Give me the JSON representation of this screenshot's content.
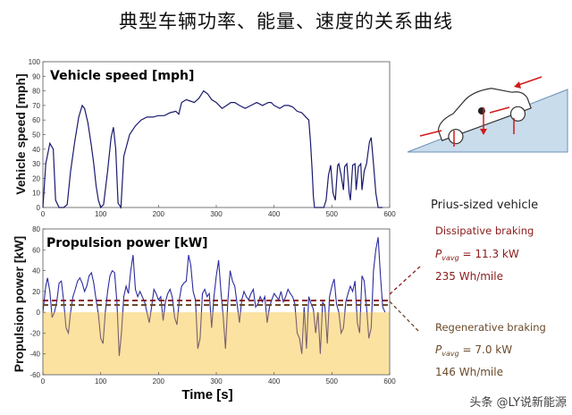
{
  "title": "典型车辆功率、能量、速度的关系曲线",
  "watermark": "头条 @LY说新能源",
  "chart_data": [
    {
      "type": "line",
      "title": "Vehicle speed [mph]",
      "ylabel": "Vehicle speed [mph]",
      "xlabel": "",
      "xlim": [
        0,
        600
      ],
      "ylim": [
        0,
        100
      ],
      "xticks": [
        0,
        100,
        200,
        300,
        400,
        500,
        600
      ],
      "yticks": [
        0,
        10,
        20,
        30,
        40,
        50,
        60,
        70,
        80,
        90,
        100
      ],
      "grid": false,
      "series": [
        {
          "color": "#1a1a6e",
          "x": [
            0,
            5,
            12,
            18,
            22,
            28,
            32,
            36,
            42,
            48,
            55,
            62,
            68,
            72,
            78,
            84,
            88,
            92,
            96,
            100,
            105,
            112,
            118,
            122,
            126,
            130,
            135,
            140,
            150,
            160,
            170,
            180,
            190,
            200,
            210,
            220,
            230,
            235,
            240,
            248,
            255,
            262,
            270,
            278,
            285,
            292,
            300,
            305,
            310,
            318,
            325,
            332,
            340,
            350,
            360,
            370,
            380,
            390,
            395,
            400,
            405,
            410,
            418,
            425,
            432,
            440,
            448,
            455,
            460,
            463,
            466,
            468,
            470,
            472,
            474,
            476,
            478,
            480,
            484,
            486,
            490,
            494,
            498,
            502,
            506,
            510,
            512,
            516,
            520,
            522,
            526,
            530,
            532,
            536,
            540,
            542,
            546,
            550,
            552,
            556,
            560,
            565,
            568,
            572,
            576,
            580,
            584,
            588
          ],
          "y": [
            0,
            30,
            44,
            40,
            5,
            0,
            0,
            0,
            2,
            25,
            45,
            62,
            70,
            68,
            58,
            42,
            30,
            15,
            5,
            0,
            2,
            25,
            48,
            55,
            40,
            3,
            0,
            35,
            50,
            56,
            60,
            62,
            62,
            63,
            63,
            65,
            66,
            64,
            72,
            74,
            73,
            72,
            75,
            80,
            78,
            74,
            72,
            70,
            68,
            70,
            72,
            72,
            70,
            68,
            70,
            72,
            70,
            72,
            72,
            70,
            69,
            68,
            70,
            70,
            69,
            66,
            65,
            62,
            60,
            45,
            25,
            8,
            0,
            0,
            0,
            0,
            0,
            0,
            0,
            0,
            5,
            22,
            29,
            10,
            5,
            29,
            30,
            22,
            12,
            28,
            30,
            10,
            5,
            29,
            30,
            12,
            28,
            30,
            12,
            25,
            30,
            45,
            48,
            30,
            10,
            0,
            0,
            0
          ]
        }
      ]
    },
    {
      "type": "line",
      "title": "Propulsion power [kW]",
      "ylabel": "Propulsion power [kW]",
      "xlabel": "Time [s]",
      "xlim": [
        0,
        600
      ],
      "ylim": [
        -60,
        80
      ],
      "xticks": [
        0,
        100,
        200,
        300,
        400,
        500,
        600
      ],
      "yticks": [
        -60,
        -40,
        -20,
        0,
        20,
        40,
        60,
        80
      ],
      "grid": false,
      "negative_region_color": "#fbe2a0",
      "reference_lines": [
        {
          "label": "Dissipative braking",
          "value": 11.3,
          "color": "#8b1a1a"
        },
        {
          "label": "Regenerative braking",
          "value": 7.0,
          "color": "#6b4a2a"
        }
      ],
      "series": [
        {
          "color": "#2a2aa0",
          "x": [
            0,
            5,
            8,
            12,
            16,
            20,
            24,
            28,
            32,
            36,
            40,
            44,
            48,
            52,
            56,
            60,
            64,
            68,
            72,
            76,
            80,
            84,
            88,
            92,
            96,
            100,
            104,
            108,
            112,
            116,
            120,
            124,
            128,
            132,
            136,
            140,
            144,
            148,
            152,
            156,
            160,
            164,
            168,
            172,
            176,
            180,
            184,
            188,
            192,
            196,
            200,
            204,
            208,
            212,
            216,
            220,
            224,
            228,
            232,
            236,
            240,
            244,
            248,
            252,
            256,
            260,
            264,
            268,
            272,
            276,
            280,
            284,
            288,
            292,
            296,
            300,
            304,
            308,
            312,
            316,
            320,
            324,
            328,
            332,
            336,
            340,
            344,
            348,
            352,
            356,
            360,
            364,
            368,
            372,
            376,
            380,
            384,
            388,
            392,
            396,
            400,
            404,
            408,
            412,
            416,
            420,
            424,
            428,
            432,
            436,
            440,
            444,
            448,
            452,
            456,
            460,
            464,
            468,
            472,
            476,
            480,
            484,
            488,
            492,
            496,
            500,
            504,
            508,
            512,
            516,
            520,
            524,
            528,
            532,
            536,
            540,
            544,
            548,
            552,
            556,
            560,
            564,
            568,
            572,
            576,
            580,
            584,
            588,
            592
          ],
          "y": [
            0,
            25,
            33,
            20,
            -5,
            0,
            10,
            28,
            30,
            10,
            -15,
            -20,
            0,
            15,
            22,
            30,
            33,
            28,
            20,
            25,
            35,
            38,
            28,
            12,
            -2,
            -25,
            -30,
            0,
            20,
            35,
            40,
            38,
            10,
            -42,
            -20,
            15,
            25,
            18,
            40,
            55,
            22,
            15,
            20,
            15,
            10,
            0,
            -10,
            5,
            22,
            18,
            12,
            15,
            -8,
            10,
            18,
            22,
            14,
            -5,
            -12,
            12,
            25,
            28,
            30,
            55,
            45,
            20,
            12,
            -35,
            -25,
            18,
            22,
            15,
            18,
            -15,
            15,
            35,
            50,
            20,
            -5,
            -35,
            10,
            40,
            30,
            25,
            8,
            -10,
            12,
            20,
            15,
            12,
            18,
            22,
            5,
            8,
            15,
            10,
            15,
            -10,
            5,
            12,
            18,
            15,
            12,
            20,
            10,
            15,
            22,
            18,
            15,
            8,
            -20,
            -25,
            -40,
            5,
            -35,
            15,
            8,
            3,
            -20,
            0,
            -40,
            10,
            5,
            -30,
            15,
            25,
            32,
            8,
            0,
            -20,
            -15,
            10,
            18,
            25,
            20,
            30,
            -10,
            -20,
            35,
            30,
            5,
            -25,
            -15,
            40,
            60,
            72,
            35,
            5,
            0
          ]
        }
      ]
    }
  ],
  "side_panel": {
    "heading": "Prius-sized vehicle",
    "dissipative": {
      "label": "Dissipative braking",
      "p_symbol": "P",
      "p_subscript": "vavg",
      "value": " = 11.3 kW",
      "energy": "235 Wh/mile"
    },
    "regenerative": {
      "label": "Regenerative braking",
      "p_symbol": "P",
      "p_subscript": "vavg",
      "value": " = 7.0 kW",
      "energy": "146 Wh/mile"
    }
  }
}
